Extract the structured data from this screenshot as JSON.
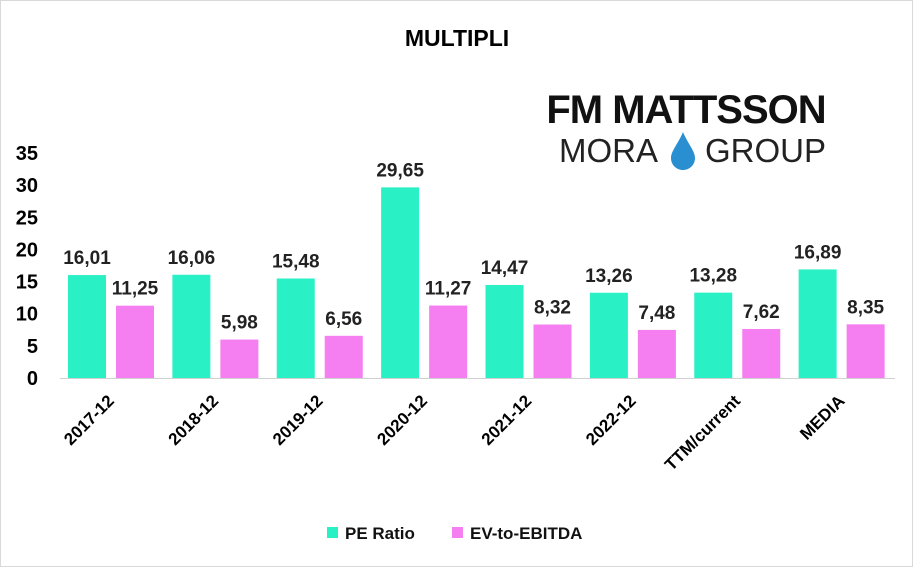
{
  "logo": {
    "line1": "FM MATTSSON",
    "line2_left": "MORA",
    "line2_right": "GROUP",
    "drop_color": "#2a8fd0"
  },
  "chart_data": {
    "type": "bar",
    "title": "MULTIPLI",
    "categories": [
      "2017-12",
      "2018-12",
      "2019-12",
      "2020-12",
      "2021-12",
      "2022-12",
      "TTM/current",
      "MEDIA"
    ],
    "series": [
      {
        "name": "PE Ratio",
        "color": "#2af0c6",
        "values": [
          16.01,
          16.06,
          15.48,
          29.65,
          14.47,
          13.26,
          13.28,
          16.89
        ],
        "labels": [
          "16,01",
          "16,06",
          "15,48",
          "29,65",
          "14,47",
          "13,26",
          "13,28",
          "16,89"
        ]
      },
      {
        "name": "EV-to-EBITDA",
        "color": "#f57ef0",
        "values": [
          11.25,
          5.98,
          6.56,
          11.27,
          8.32,
          7.48,
          7.62,
          8.35
        ],
        "labels": [
          "11,25",
          "5,98",
          "6,56",
          "11,27",
          "8,32",
          "7,48",
          "7,62",
          "8,35"
        ]
      }
    ],
    "ylim": [
      0,
      35
    ],
    "yticks": [
      "0",
      "5",
      "10",
      "15",
      "20",
      "25",
      "30",
      "35"
    ],
    "xlabel": "",
    "ylabel": "",
    "grid": false,
    "legend_position": "bottom"
  }
}
